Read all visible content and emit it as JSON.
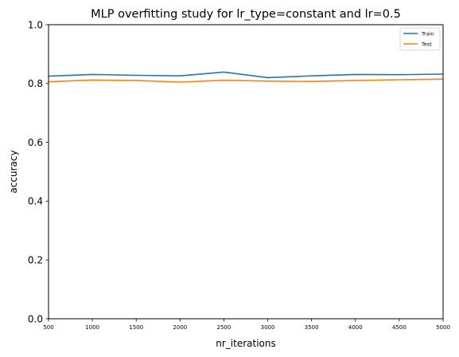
{
  "chart_data": {
    "type": "line",
    "title": "MLP overfitting study for lr_type=constant and lr=0.5",
    "xlabel": "nr_iterations",
    "ylabel": "accuracy",
    "xlim": [
      500,
      5000
    ],
    "ylim": [
      0.0,
      1.0
    ],
    "x": [
      500,
      1000,
      1500,
      2000,
      2500,
      3000,
      3500,
      4000,
      4500,
      5000
    ],
    "x_ticks": [
      "500",
      "1000",
      "1500",
      "2000",
      "2500",
      "3000",
      "3500",
      "4000",
      "4500",
      "5000"
    ],
    "y_ticks": [
      "0.0",
      "0.2",
      "0.4",
      "0.6",
      "0.8",
      "1.0"
    ],
    "grid": false,
    "legend_position": "top-right",
    "series": [
      {
        "name": "Train",
        "color": "#1f77b4",
        "values": [
          0.825,
          0.831,
          0.828,
          0.826,
          0.839,
          0.82,
          0.826,
          0.831,
          0.83,
          0.832
        ]
      },
      {
        "name": "Test",
        "color": "#ff7f0e",
        "values": [
          0.806,
          0.812,
          0.81,
          0.805,
          0.811,
          0.808,
          0.807,
          0.81,
          0.813,
          0.815
        ]
      }
    ]
  }
}
